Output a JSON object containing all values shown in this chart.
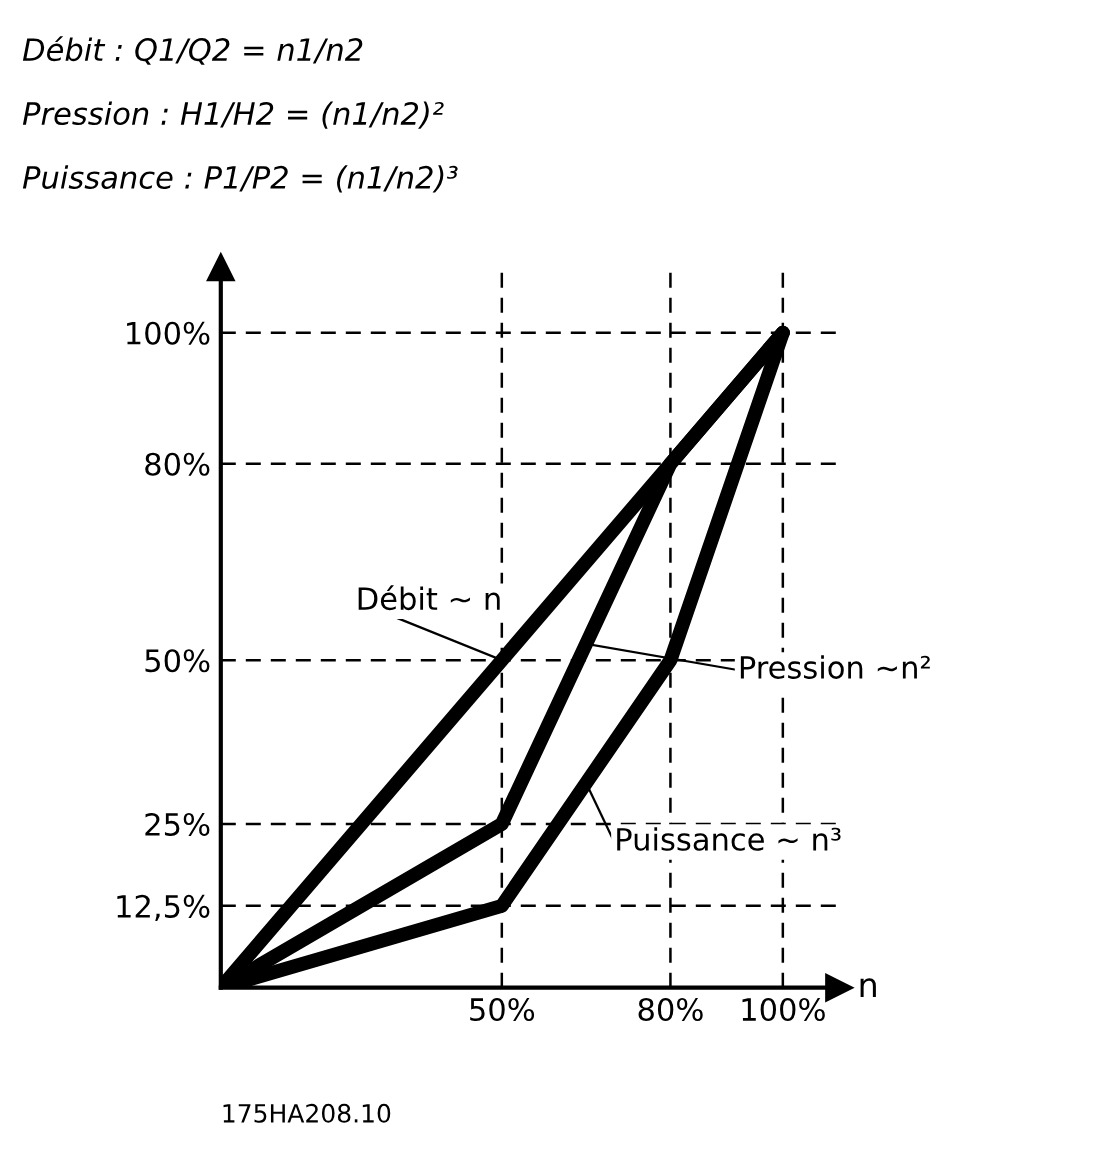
{
  "chart_data": {
    "type": "line",
    "xlabel": "n",
    "x": [
      0,
      50,
      80,
      100
    ],
    "series": [
      {
        "name": "Débit ~ n",
        "color": "#000000",
        "values": [
          0,
          50,
          80,
          100
        ]
      },
      {
        "name": "Pression ~n²",
        "color": "#000000",
        "values": [
          0,
          25,
          80,
          100
        ]
      },
      {
        "name": "Puissance ~ n³",
        "color": "#000000",
        "values": [
          0,
          12.5,
          50,
          100
        ]
      }
    ],
    "xlim": [
      0,
      110
    ],
    "ylim": [
      0,
      110
    ],
    "xticks": [
      {
        "value": 50,
        "label": "50%"
      },
      {
        "value": 80,
        "label": "80%"
      },
      {
        "value": 100,
        "label": "100%"
      }
    ],
    "yticks": [
      {
        "value": 12.5,
        "label": "12,5%"
      },
      {
        "value": 25,
        "label": "25%"
      },
      {
        "value": 50,
        "label": "50%"
      },
      {
        "value": 80,
        "label": "80%"
      },
      {
        "value": 100,
        "label": "100%"
      }
    ],
    "grid": true,
    "marker": "none",
    "line_style": "solid",
    "annotations": [
      "Débit : Q1/Q2 = n1/n2",
      "Pression : H1/H2 = (n1/n2)²",
      "Puissance : P1/P2 = (n1/n2)³",
      "175HA208.10"
    ]
  }
}
